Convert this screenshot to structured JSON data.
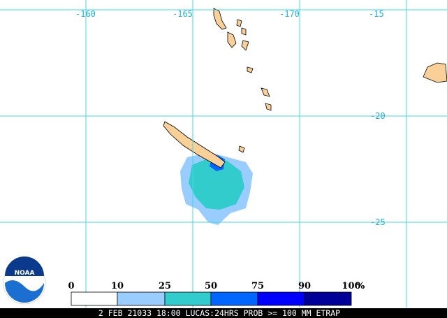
{
  "map": {
    "lon_labels": [
      "-160",
      "-165",
      "-170"
    ],
    "lat_labels": [
      "-15",
      "-20",
      "-25"
    ]
  },
  "legend": {
    "labels": [
      "0",
      "10",
      "25",
      "50",
      "75",
      "90",
      "100"
    ],
    "unit": "%",
    "colors": [
      "#ffffff",
      "#99ccff",
      "#33cccc",
      "#0066ff",
      "#0000ff",
      "#000099"
    ]
  },
  "logo": "NOAA",
  "caption": "2 FEB 21033 18:00 LUCAS:24HRS PROB >= 100 MM ETRAP"
}
